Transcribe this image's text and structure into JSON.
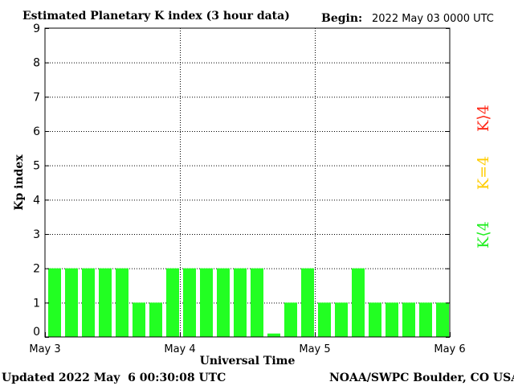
{
  "chart_data": {
    "type": "bar",
    "title": "Estimated Planetary K index (3 hour data)",
    "begin_label": "Begin:",
    "begin_value": "2022 May 03 0000 UTC",
    "xlabel": "Universal Time",
    "ylabel": "Kp index",
    "ylim": [
      0,
      9
    ],
    "yticks": [
      "0",
      "1",
      "2",
      "3",
      "4",
      "5",
      "6",
      "7",
      "8",
      "9"
    ],
    "xticks": [
      "May 3",
      "May 4",
      "May 5",
      "May 6"
    ],
    "grid": true,
    "bar_color": "#22ff22",
    "values": [
      2,
      2,
      2,
      2,
      2,
      1,
      1,
      2,
      2,
      2,
      2,
      2,
      2,
      0.1,
      1,
      2,
      1,
      1,
      2,
      1,
      1,
      1,
      1,
      1
    ],
    "legend": [
      {
        "label": "K⟩4",
        "color": "#ff2a1a"
      },
      {
        "label": "K=4",
        "color": "#ffcc00"
      },
      {
        "label": "K⟨4",
        "color": "#22ee22"
      }
    ]
  },
  "footer": {
    "updated": "Updated 2022 May  6 00:30:08 UTC",
    "source": "NOAA/SWPC Boulder, CO USA"
  }
}
